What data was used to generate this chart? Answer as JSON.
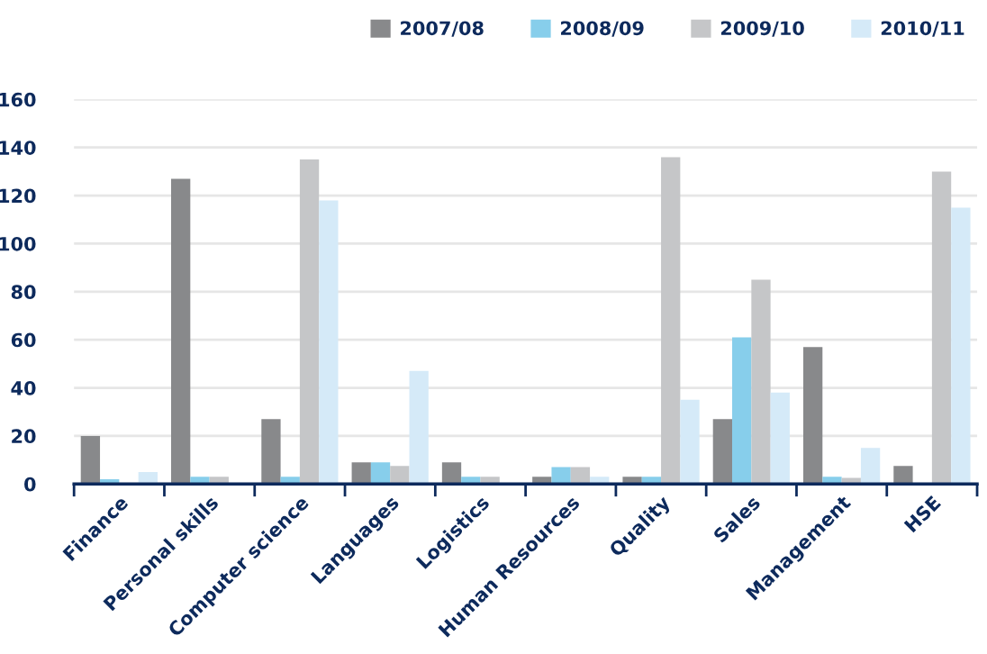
{
  "chart_data": {
    "type": "bar",
    "categories": [
      "Finance",
      "Personal skills",
      "Computer science",
      "Languages",
      "Logistics",
      "Human Resources",
      "Quality",
      "Sales",
      "Management",
      "HSE"
    ],
    "series": [
      {
        "name": "2007/08",
        "color": "#88898b",
        "values": [
          20,
          127,
          27,
          9,
          9,
          3,
          3,
          27,
          57,
          7.5
        ]
      },
      {
        "name": "2008/09",
        "color": "#87ceeb",
        "values": [
          2,
          3,
          3,
          9,
          3,
          7,
          3,
          61,
          3,
          0
        ]
      },
      {
        "name": "2009/10",
        "color": "#c5c6c8",
        "values": [
          0,
          3,
          135,
          7.5,
          3,
          7,
          136,
          85,
          2.5,
          130
        ]
      },
      {
        "name": "2010/11",
        "color": "#d5eaf8",
        "values": [
          5,
          0,
          118,
          47,
          0,
          3,
          35,
          38,
          15,
          115
        ]
      }
    ],
    "ylim": [
      0,
      160
    ],
    "yticks": [
      0,
      20,
      40,
      60,
      80,
      100,
      120,
      140,
      160
    ],
    "grid": "y",
    "legend": "top right"
  }
}
